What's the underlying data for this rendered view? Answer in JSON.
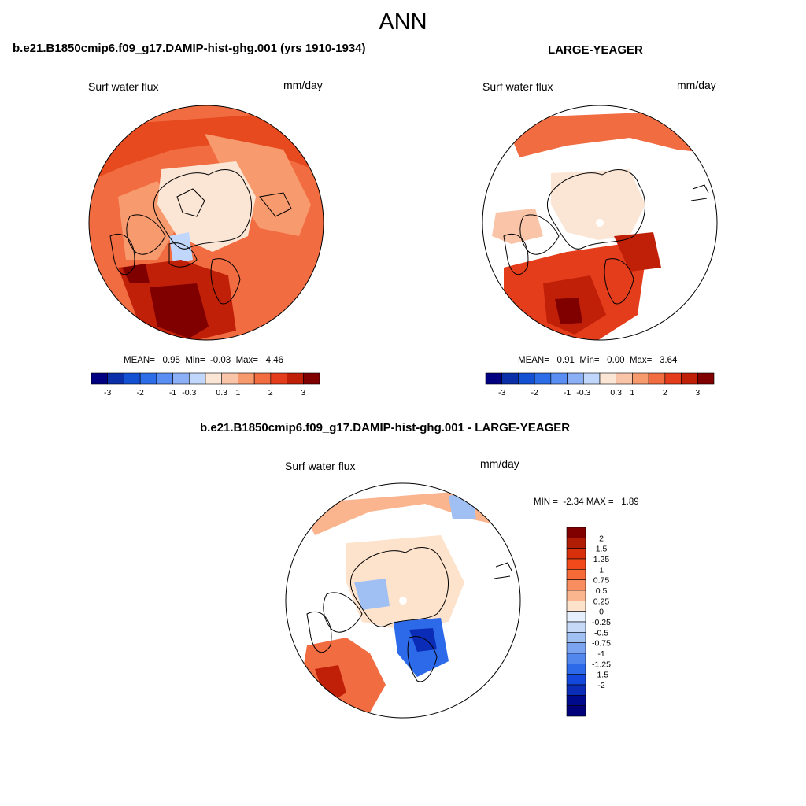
{
  "page": {
    "title": "ANN"
  },
  "panels": {
    "left": {
      "case": "b.e21.B1850cmip6.f09_g17.DAMIP-hist-ghg.001 (yrs 1910-1934)",
      "variable": "Surf water flux",
      "units": "mm/day",
      "stats": {
        "mean_label": "MEAN=",
        "mean": "0.95",
        "min_label": "Min=",
        "min": "-0.03",
        "max_label": "Max=",
        "max": "4.46"
      }
    },
    "right": {
      "case": "LARGE-YEAGER",
      "variable": "Surf water flux",
      "units": "mm/day",
      "stats": {
        "mean_label": "MEAN=",
        "mean": "0.91",
        "min_label": "Min=",
        "min": "0.00",
        "max_label": "Max=",
        "max": "3.64"
      }
    },
    "diff": {
      "case": "b.e21.B1850cmip6.f09_g17.DAMIP-hist-ghg.001 - LARGE-YEAGER",
      "variable": "Surf water flux",
      "units": "mm/day",
      "stats": {
        "min_label": "MIN =",
        "min": "-2.34",
        "max_label": "MAX =",
        "max": "1.89"
      }
    }
  },
  "colorbars": {
    "abs": {
      "colors": [
        "#000080",
        "#0a2fa8",
        "#1450d2",
        "#2d6ee8",
        "#5a8ef2",
        "#8cb0f6",
        "#c0d6fa",
        "#fbe6d6",
        "#f9c4a8",
        "#f79a6e",
        "#f26c42",
        "#e43d1c",
        "#c01f08",
        "#800000"
      ],
      "labels": [
        "-3",
        "-2",
        "-1",
        "-0.3",
        "0.3",
        "1",
        "2",
        "3"
      ]
    },
    "diff": {
      "colors": [
        "#800000",
        "#b01c04",
        "#d8300c",
        "#f24a1a",
        "#f66a38",
        "#f88e60",
        "#fab48e",
        "#fde2cc",
        "#e6f0fc",
        "#c6daf8",
        "#a0c0f4",
        "#7aa4f0",
        "#5288ee",
        "#2c6aea",
        "#1448dc",
        "#0a2cb6",
        "#000a8c",
        "#00007a"
      ],
      "labels": [
        "2",
        "1.5",
        "1.25",
        "1",
        "0.75",
        "0.5",
        "0.25",
        "0",
        "-0.25",
        "-0.5",
        "-0.75",
        "-1",
        "-1.25",
        "-1.5",
        "-2"
      ]
    }
  },
  "chart_data": [
    {
      "type": "heatmap",
      "title": "b.e21.B1850cmip6.f09_g17.DAMIP-hist-ghg.001 (yrs 1910-1934)",
      "variable": "Surf water flux",
      "units": "mm/day",
      "season": "ANN",
      "projection": "polar stereographic (north)",
      "mean": 0.95,
      "min": -0.03,
      "max": 4.46,
      "levels": [
        -3,
        -2,
        -1,
        -0.3,
        0.3,
        1,
        2,
        3
      ]
    },
    {
      "type": "heatmap",
      "title": "LARGE-YEAGER",
      "variable": "Surf water flux",
      "units": "mm/day",
      "season": "ANN",
      "projection": "polar stereographic (north)",
      "mean": 0.91,
      "min": 0.0,
      "max": 3.64,
      "levels": [
        -3,
        -2,
        -1,
        -0.3,
        0.3,
        1,
        2,
        3
      ]
    },
    {
      "type": "heatmap",
      "title": "b.e21.B1850cmip6.f09_g17.DAMIP-hist-ghg.001 - LARGE-YEAGER",
      "variable": "Surf water flux",
      "units": "mm/day",
      "season": "ANN",
      "projection": "polar stereographic (north)",
      "min": -2.34,
      "max": 1.89,
      "levels": [
        -2,
        -1.5,
        -1.25,
        -1,
        -0.75,
        -0.5,
        -0.25,
        0,
        0.25,
        0.5,
        0.75,
        1,
        1.25,
        1.5,
        2
      ]
    }
  ]
}
